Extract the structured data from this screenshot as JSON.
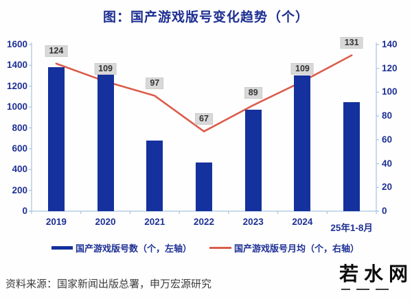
{
  "title": "图：国产游戏版号变化趋势（个）",
  "source_note": "资料来源：国家新闻出版总署，申万宏源研究",
  "watermark": {
    "text": "若水网"
  },
  "colors": {
    "bar": "#15319D",
    "line": "#DB5C4B",
    "axis_line": "#A6C4E2",
    "navy_text": "#1E3094",
    "title_text": "#1D2E91",
    "point_label_bg": "#D8D8D8",
    "point_label_text": "#333333",
    "source_text": "#3C3C3C"
  },
  "chart_data": {
    "type": "bar",
    "subtype": "bar+line dual axis",
    "title": "图：国产游戏版号变化趋势（个）",
    "categories": [
      "2019",
      "2020",
      "2021",
      "2022",
      "2023",
      "2024",
      "25年1-8月"
    ],
    "series": [
      {
        "name": "国产游戏版号数（个，左轴）",
        "type": "bar",
        "axis": "left",
        "values": [
          1385,
          1308,
          679,
          468,
          977,
          1306,
          1048
        ]
      },
      {
        "name": "国产游戏版号月均（个，右轴）",
        "type": "line",
        "axis": "right",
        "values": [
          124,
          109,
          97,
          67,
          89,
          109,
          131
        ],
        "data_labels": [
          "124",
          "109",
          "97",
          "67",
          "89",
          "109",
          "131"
        ]
      }
    ],
    "left_axis": {
      "min": 0,
      "max": 1600,
      "step": 200
    },
    "right_axis": {
      "min": 0,
      "max": 140,
      "step": 20
    },
    "grid": false,
    "legend_position": "bottom"
  },
  "legend": {
    "entries": [
      {
        "label": "国产游戏版号数（个，左轴）"
      },
      {
        "label": "国产游戏版号月均（个，右轴）"
      }
    ]
  }
}
